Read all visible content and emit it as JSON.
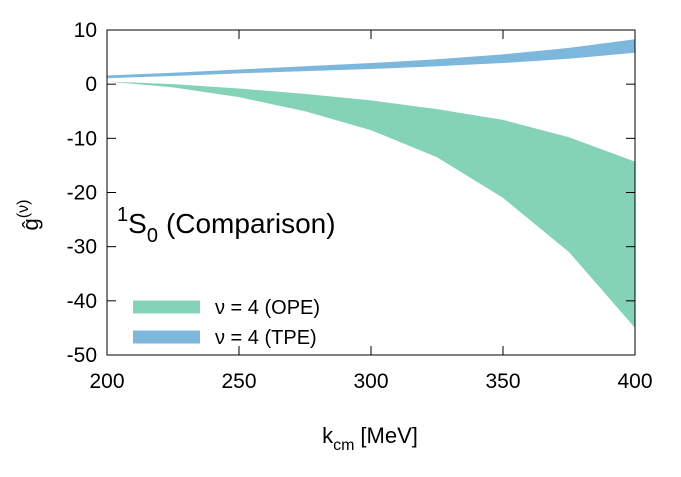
{
  "chart_data": {
    "type": "band",
    "annotation": {
      "sup": "1",
      "base": "S",
      "sub": "0",
      "rest": "(Comparison)"
    },
    "xlabel": {
      "base": "k",
      "sub": "cm",
      "rest": "[MeV]"
    },
    "ylabel": {
      "base": "ĝ",
      "sup": "(ν)"
    },
    "x": [
      200,
      225,
      250,
      275,
      300,
      325,
      350,
      375,
      400
    ],
    "series": [
      {
        "name": "ν = 4 (OPE)",
        "color": "#84d3b7",
        "lower": [
          0.5,
          -0.6,
          -2.4,
          -5,
          -8.5,
          -13.5,
          -21,
          -31,
          -45
        ],
        "upper": [
          0.5,
          0,
          -0.8,
          -1.8,
          -3,
          -4.6,
          -6.6,
          -9.8,
          -14.3
        ]
      },
      {
        "name": "ν = 4 (TPE)",
        "color": "#7db8dc",
        "lower": [
          1.1,
          1.5,
          2.0,
          2.4,
          2.8,
          3.3,
          3.9,
          4.7,
          5.8
        ],
        "upper": [
          1.6,
          2.1,
          2.7,
          3.3,
          3.9,
          4.6,
          5.5,
          6.7,
          8.3
        ]
      }
    ],
    "xlim": [
      200,
      400
    ],
    "ylim": [
      -50,
      10
    ],
    "xticks": [
      200,
      250,
      300,
      350,
      400
    ],
    "yticks": [
      -50,
      -40,
      -30,
      -20,
      -10,
      0,
      10
    ],
    "legend": "lower-left"
  }
}
